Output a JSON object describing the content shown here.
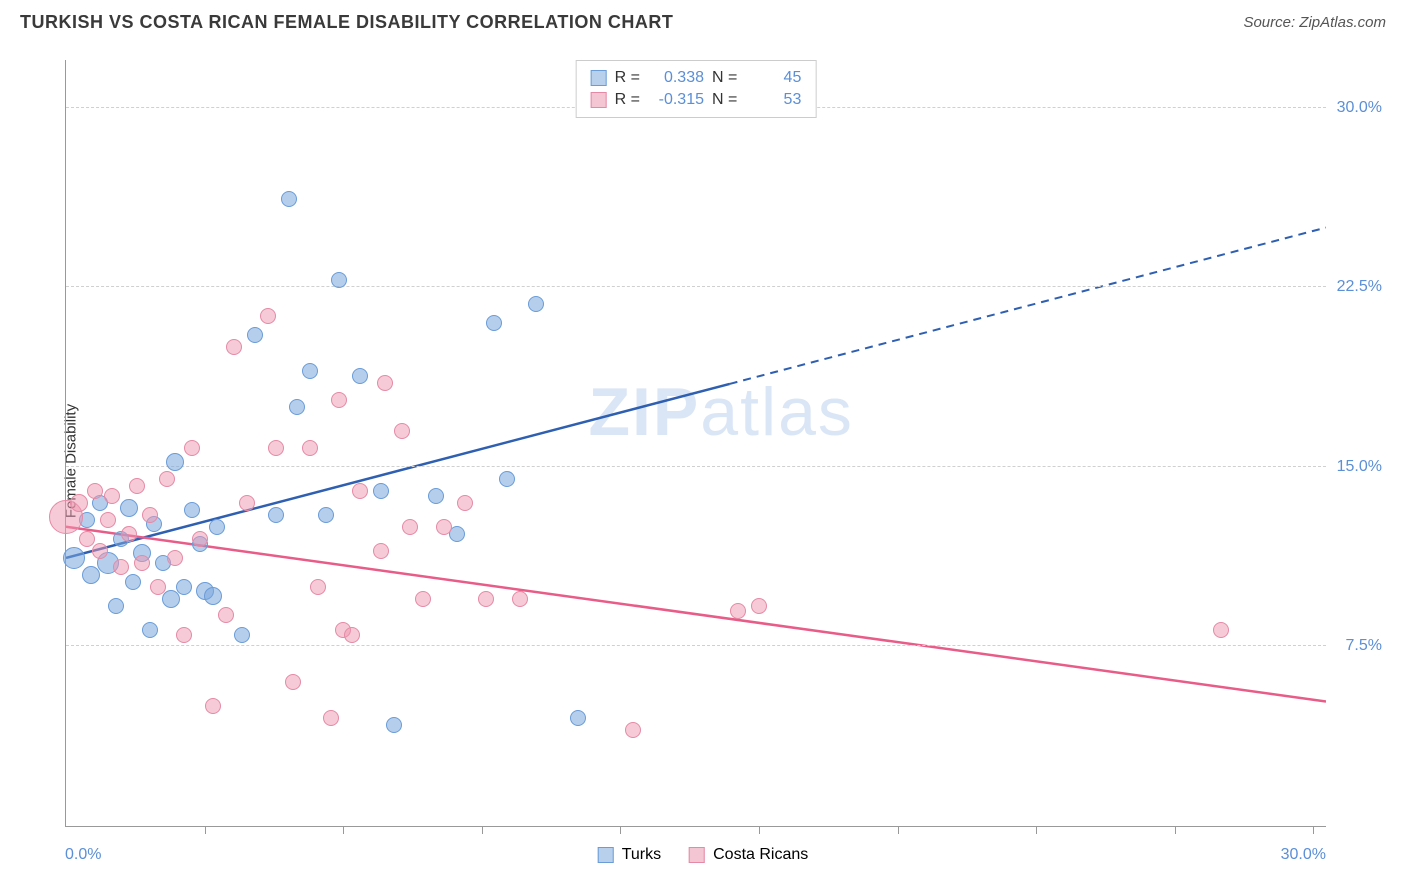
{
  "title": "TURKISH VS COSTA RICAN FEMALE DISABILITY CORRELATION CHART",
  "source": "Source: ZipAtlas.com",
  "ylabel": "Female Disability",
  "watermark_bold": "ZIP",
  "watermark_rest": "atlas",
  "chart": {
    "type": "scatter",
    "xlim": [
      0,
      30
    ],
    "ylim": [
      0,
      32
    ],
    "xlabel_min": "0.0%",
    "xlabel_max": "30.0%",
    "ytick_labels": [
      {
        "v": 7.5,
        "label": "7.5%"
      },
      {
        "v": 15.0,
        "label": "15.0%"
      },
      {
        "v": 22.5,
        "label": "22.5%"
      },
      {
        "v": 30.0,
        "label": "30.0%"
      }
    ],
    "xtick_positions": [
      3.3,
      6.6,
      9.9,
      13.2,
      16.5,
      19.8,
      23.1,
      26.4,
      29.7
    ],
    "grid_color": "#d0d0d0",
    "axis_color": "#999999",
    "tick_label_color": "#5b8fd6",
    "background_color": "#ffffff"
  },
  "series": [
    {
      "name": "Turks",
      "color_fill": "rgba(120,165,220,0.55)",
      "color_stroke": "#6a9cd8",
      "swatch_fill": "#b9d0ec",
      "swatch_border": "#6a9cd8",
      "R": "0.338",
      "N": "45",
      "trend": {
        "x1": 0,
        "y1": 11.2,
        "x2": 30,
        "y2": 25.0,
        "color": "#2e5fb0",
        "solid_until_x": 15.8
      },
      "points": [
        {
          "x": 0.2,
          "y": 11.2,
          "r": 11
        },
        {
          "x": 0.5,
          "y": 12.8,
          "r": 8
        },
        {
          "x": 0.6,
          "y": 10.5,
          "r": 9
        },
        {
          "x": 0.8,
          "y": 13.5,
          "r": 8
        },
        {
          "x": 1.0,
          "y": 11.0,
          "r": 11
        },
        {
          "x": 1.2,
          "y": 9.2,
          "r": 8
        },
        {
          "x": 1.3,
          "y": 12.0,
          "r": 8
        },
        {
          "x": 1.5,
          "y": 13.3,
          "r": 9
        },
        {
          "x": 1.6,
          "y": 10.2,
          "r": 8
        },
        {
          "x": 1.8,
          "y": 11.4,
          "r": 9
        },
        {
          "x": 2.0,
          "y": 8.2,
          "r": 8
        },
        {
          "x": 2.1,
          "y": 12.6,
          "r": 8
        },
        {
          "x": 2.3,
          "y": 11.0,
          "r": 8
        },
        {
          "x": 2.5,
          "y": 9.5,
          "r": 9
        },
        {
          "x": 2.6,
          "y": 15.2,
          "r": 9
        },
        {
          "x": 2.8,
          "y": 10.0,
          "r": 8
        },
        {
          "x": 3.0,
          "y": 13.2,
          "r": 8
        },
        {
          "x": 3.2,
          "y": 11.8,
          "r": 8
        },
        {
          "x": 3.3,
          "y": 9.8,
          "r": 9
        },
        {
          "x": 3.5,
          "y": 9.6,
          "r": 9
        },
        {
          "x": 3.6,
          "y": 12.5,
          "r": 8
        },
        {
          "x": 4.2,
          "y": 8.0,
          "r": 8
        },
        {
          "x": 4.5,
          "y": 20.5,
          "r": 8
        },
        {
          "x": 5.0,
          "y": 13.0,
          "r": 8
        },
        {
          "x": 5.3,
          "y": 26.2,
          "r": 8
        },
        {
          "x": 5.5,
          "y": 17.5,
          "r": 8
        },
        {
          "x": 5.8,
          "y": 19.0,
          "r": 8
        },
        {
          "x": 6.2,
          "y": 13.0,
          "r": 8
        },
        {
          "x": 6.5,
          "y": 22.8,
          "r": 8
        },
        {
          "x": 7.0,
          "y": 18.8,
          "r": 8
        },
        {
          "x": 7.5,
          "y": 14.0,
          "r": 8
        },
        {
          "x": 7.8,
          "y": 4.2,
          "r": 8
        },
        {
          "x": 8.8,
          "y": 13.8,
          "r": 8
        },
        {
          "x": 9.3,
          "y": 12.2,
          "r": 8
        },
        {
          "x": 10.2,
          "y": 21.0,
          "r": 8
        },
        {
          "x": 10.5,
          "y": 14.5,
          "r": 8
        },
        {
          "x": 11.2,
          "y": 21.8,
          "r": 8
        },
        {
          "x": 12.2,
          "y": 4.5,
          "r": 8
        }
      ]
    },
    {
      "name": "Costa Ricans",
      "color_fill": "rgba(238,150,175,0.5)",
      "color_stroke": "#e58aa6",
      "swatch_fill": "#f4c5d3",
      "swatch_border": "#e58aa6",
      "R": "-0.315",
      "N": "53",
      "trend": {
        "x1": 0,
        "y1": 12.5,
        "x2": 30,
        "y2": 5.2,
        "color": "#e85c88",
        "solid_until_x": 30
      },
      "points": [
        {
          "x": 0.0,
          "y": 12.9,
          "r": 17
        },
        {
          "x": 0.3,
          "y": 13.5,
          "r": 9
        },
        {
          "x": 0.5,
          "y": 12.0,
          "r": 8
        },
        {
          "x": 0.7,
          "y": 14.0,
          "r": 8
        },
        {
          "x": 0.8,
          "y": 11.5,
          "r": 8
        },
        {
          "x": 1.0,
          "y": 12.8,
          "r": 8
        },
        {
          "x": 1.1,
          "y": 13.8,
          "r": 8
        },
        {
          "x": 1.3,
          "y": 10.8,
          "r": 8
        },
        {
          "x": 1.5,
          "y": 12.2,
          "r": 8
        },
        {
          "x": 1.7,
          "y": 14.2,
          "r": 8
        },
        {
          "x": 1.8,
          "y": 11.0,
          "r": 8
        },
        {
          "x": 2.0,
          "y": 13.0,
          "r": 8
        },
        {
          "x": 2.2,
          "y": 10.0,
          "r": 8
        },
        {
          "x": 2.4,
          "y": 14.5,
          "r": 8
        },
        {
          "x": 2.6,
          "y": 11.2,
          "r": 8
        },
        {
          "x": 2.8,
          "y": 8.0,
          "r": 8
        },
        {
          "x": 3.0,
          "y": 15.8,
          "r": 8
        },
        {
          "x": 3.2,
          "y": 12.0,
          "r": 8
        },
        {
          "x": 3.5,
          "y": 5.0,
          "r": 8
        },
        {
          "x": 3.8,
          "y": 8.8,
          "r": 8
        },
        {
          "x": 4.0,
          "y": 20.0,
          "r": 8
        },
        {
          "x": 4.3,
          "y": 13.5,
          "r": 8
        },
        {
          "x": 4.8,
          "y": 21.3,
          "r": 8
        },
        {
          "x": 5.0,
          "y": 15.8,
          "r": 8
        },
        {
          "x": 5.4,
          "y": 6.0,
          "r": 8
        },
        {
          "x": 5.8,
          "y": 15.8,
          "r": 8
        },
        {
          "x": 6.0,
          "y": 10.0,
          "r": 8
        },
        {
          "x": 6.3,
          "y": 4.5,
          "r": 8
        },
        {
          "x": 6.5,
          "y": 17.8,
          "r": 8
        },
        {
          "x": 6.6,
          "y": 8.2,
          "r": 8
        },
        {
          "x": 6.8,
          "y": 8.0,
          "r": 8
        },
        {
          "x": 7.0,
          "y": 14.0,
          "r": 8
        },
        {
          "x": 7.5,
          "y": 11.5,
          "r": 8
        },
        {
          "x": 7.6,
          "y": 18.5,
          "r": 8
        },
        {
          "x": 8.0,
          "y": 16.5,
          "r": 8
        },
        {
          "x": 8.2,
          "y": 12.5,
          "r": 8
        },
        {
          "x": 8.5,
          "y": 9.5,
          "r": 8
        },
        {
          "x": 9.0,
          "y": 12.5,
          "r": 8
        },
        {
          "x": 9.5,
          "y": 13.5,
          "r": 8
        },
        {
          "x": 10.0,
          "y": 9.5,
          "r": 8
        },
        {
          "x": 10.8,
          "y": 9.5,
          "r": 8
        },
        {
          "x": 13.5,
          "y": 4.0,
          "r": 8
        },
        {
          "x": 16.0,
          "y": 9.0,
          "r": 8
        },
        {
          "x": 16.5,
          "y": 9.2,
          "r": 8
        },
        {
          "x": 27.5,
          "y": 8.2,
          "r": 8
        }
      ]
    }
  ],
  "legend_top_labels": {
    "R": "R =",
    "N": "N ="
  },
  "legend_bottom": [
    "Turks",
    "Costa Ricans"
  ]
}
